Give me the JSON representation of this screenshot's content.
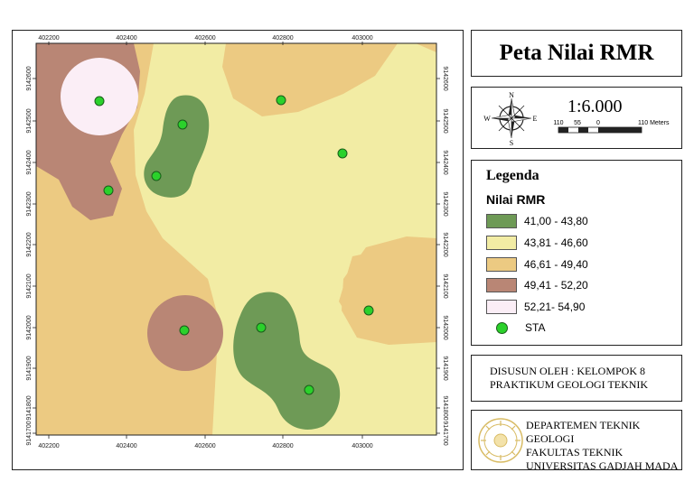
{
  "title": "Peta Nilai RMR",
  "scale": {
    "ratio": "1:6.000",
    "labels": [
      "110",
      "55",
      "0",
      "110 Meters"
    ],
    "north_letters": {
      "n": "N",
      "s": "S",
      "w": "W",
      "e": "E"
    }
  },
  "legend": {
    "title": "Legenda",
    "subtitle": "Nilai RMR",
    "classes": [
      {
        "label": "41,00 - 43,80",
        "color": "#6e9a56"
      },
      {
        "label": "43,81 - 46,60",
        "color": "#f2eca4"
      },
      {
        "label": "46,61 - 49,40",
        "color": "#ecca82"
      },
      {
        "label": "49,41 - 52,20",
        "color": "#b98675"
      },
      {
        "label": "52,21- 54,90",
        "color": "#fbeef6"
      }
    ],
    "point_label": "STA",
    "point_color": "#2bd12b"
  },
  "author": {
    "line1": "DISUSUN OLEH : KELOMPOK 8",
    "line2": "PRAKTIKUM GEOLOGI TEKNIK"
  },
  "institution": {
    "line1": "DEPARTEMEN TEKNIK GEOLOGI",
    "line2": "FAKULTAS TEKNIK",
    "line3": "UNIVERSITAS GADJAH MADA"
  },
  "map": {
    "x_ticks": [
      "402200",
      "402400",
      "402600",
      "402800",
      "403000"
    ],
    "y_ticks": [
      "9142600",
      "9142500",
      "9142400",
      "9142300",
      "9142200",
      "9142100",
      "9142000",
      "9141900",
      "9141800",
      "9141700"
    ],
    "stations": 10
  }
}
